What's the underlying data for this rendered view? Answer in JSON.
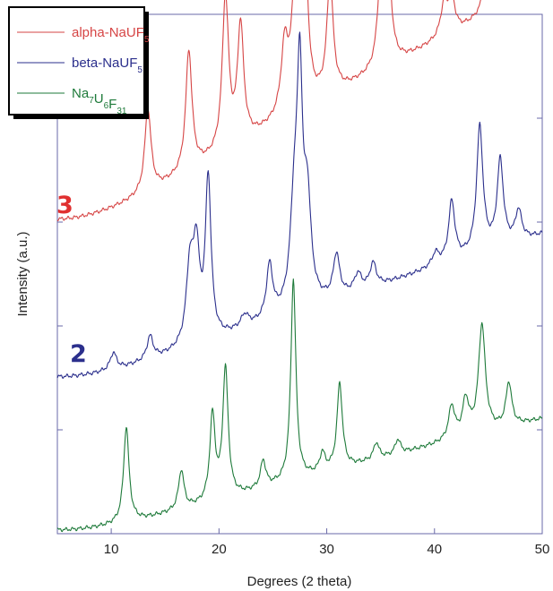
{
  "chart_data": {
    "type": "line",
    "xlabel": "Degrees (2 theta)",
    "ylabel": "Intensity (a.u.)",
    "xlim": [
      5,
      50
    ],
    "xticks": [
      10,
      20,
      30,
      40,
      50
    ],
    "grid": false,
    "legend_position": "top-left",
    "legend": [
      {
        "main": "alpha-NaUF",
        "sub": "5",
        "color": "#d64545"
      },
      {
        "main": "beta-NaUF",
        "sub": "5",
        "color": "#2b2f8c"
      },
      {
        "parts": [
          [
            "Na",
            "7"
          ],
          [
            "U",
            "6"
          ],
          [
            "F",
            "31"
          ]
        ],
        "color": "#1e7a3a"
      }
    ],
    "series": [
      {
        "label": "3",
        "label_color": "#e03030",
        "color": "#d64545",
        "peaks": [
          [
            13.4,
            0.41,
            0.35
          ],
          [
            17.2,
            0.59,
            0.35
          ],
          [
            20.6,
            0.75,
            0.35
          ],
          [
            22.0,
            0.57,
            0.35
          ],
          [
            26.1,
            0.33,
            0.4
          ],
          [
            27.1,
            0.6,
            0.4
          ],
          [
            27.9,
            1.0,
            0.32
          ],
          [
            30.3,
            0.56,
            0.35
          ],
          [
            35.0,
            0.41,
            0.35
          ],
          [
            35.7,
            0.49,
            0.35
          ],
          [
            40.9,
            0.16,
            0.4
          ],
          [
            41.6,
            0.17,
            0.35
          ],
          [
            45.1,
            0.49,
            0.35
          ],
          [
            46.8,
            0.58,
            0.35
          ],
          [
            47.6,
            0.18,
            0.35
          ],
          [
            49.9,
            0.13,
            0.4
          ]
        ]
      },
      {
        "label": "2",
        "label_color": "#2b2f8c",
        "color": "#2b2f8c",
        "peaks": [
          [
            10.2,
            0.08,
            0.35
          ],
          [
            13.6,
            0.11,
            0.35
          ],
          [
            17.3,
            0.36,
            0.4
          ],
          [
            17.9,
            0.41,
            0.35
          ],
          [
            19.0,
            0.75,
            0.32
          ],
          [
            22.4,
            0.06,
            0.45
          ],
          [
            24.7,
            0.25,
            0.35
          ],
          [
            27.0,
            0.47,
            0.45
          ],
          [
            27.5,
            0.98,
            0.3
          ],
          [
            28.2,
            0.47,
            0.4
          ],
          [
            30.9,
            0.2,
            0.35
          ],
          [
            32.9,
            0.08,
            0.4
          ],
          [
            34.3,
            0.11,
            0.35
          ],
          [
            40.1,
            0.06,
            0.4
          ],
          [
            41.6,
            0.28,
            0.35
          ],
          [
            44.2,
            0.59,
            0.35
          ],
          [
            46.1,
            0.4,
            0.35
          ],
          [
            47.8,
            0.14,
            0.35
          ]
        ]
      },
      {
        "label": "",
        "label_color": "#1e7a3a",
        "color": "#1e7a3a",
        "peaks": [
          [
            11.4,
            0.46,
            0.3
          ],
          [
            16.5,
            0.19,
            0.3
          ],
          [
            19.4,
            0.41,
            0.3
          ],
          [
            20.6,
            0.62,
            0.3
          ],
          [
            24.1,
            0.13,
            0.3
          ],
          [
            26.9,
            0.97,
            0.28
          ],
          [
            29.6,
            0.09,
            0.3
          ],
          [
            31.2,
            0.41,
            0.3
          ],
          [
            34.6,
            0.08,
            0.3
          ],
          [
            36.6,
            0.07,
            0.3
          ],
          [
            41.6,
            0.16,
            0.35
          ],
          [
            42.9,
            0.17,
            0.35
          ],
          [
            44.4,
            0.52,
            0.38
          ],
          [
            46.9,
            0.21,
            0.32
          ]
        ]
      }
    ]
  }
}
